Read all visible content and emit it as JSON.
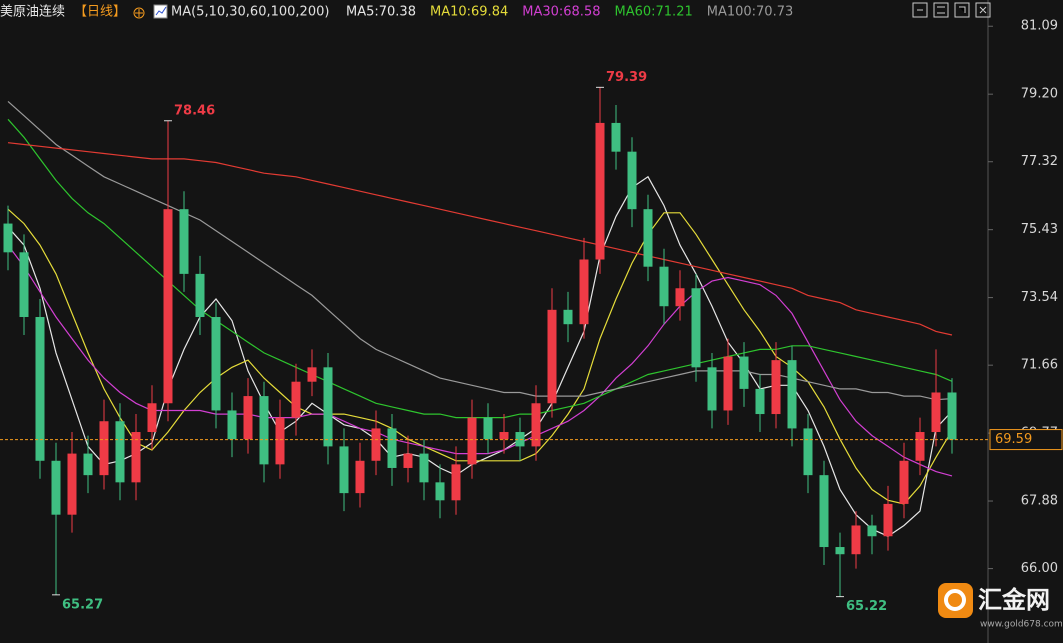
{
  "chart_data": {
    "type": "candlestick",
    "instrument": "美原油连续",
    "period": "【日线】",
    "ma_header": "MA(5,10,30,60,100,200)",
    "legend": [
      {
        "label": "MA5:70.38",
        "color": "#e6e6e6"
      },
      {
        "label": "MA10:69.84",
        "color": "#e5dc3a"
      },
      {
        "label": "MA30:68.58",
        "color": "#d23fd2"
      },
      {
        "label": "MA60:71.21",
        "color": "#2ec42e"
      },
      {
        "label": "MA100:70.73",
        "color": "#9a9a9a"
      }
    ],
    "up_color": "#ee3b46",
    "down_color": "#3fbf82",
    "last_color": "#f39a1e",
    "ylim": [
      63.93,
      81.82
    ],
    "yticks": [
      81.09,
      {
        "value": 79.2,
        "label": "79.20"
      },
      77.32,
      75.43,
      73.54,
      71.66,
      69.77,
      67.88,
      {
        "value": 66,
        "label": "66.00"
      }
    ],
    "opens": [
      75.6,
      74.8,
      73.0,
      69.0,
      67.5,
      69.2,
      68.6,
      70.1,
      68.4,
      69.8,
      70.6,
      76.0,
      74.2,
      73.0,
      70.4,
      69.6,
      70.8,
      68.9,
      70.2,
      71.2,
      71.6,
      69.4,
      68.1,
      69.0,
      69.9,
      68.8,
      69.2,
      68.4,
      67.9,
      68.9,
      70.2,
      69.6,
      69.8,
      69.4,
      70.6,
      73.2,
      72.8,
      74.6,
      78.4,
      77.6,
      76.0,
      74.4,
      73.3,
      73.8,
      71.6,
      70.4,
      71.9,
      71.0,
      70.3,
      71.8,
      69.9,
      68.6,
      66.6,
      66.4,
      67.2,
      66.9,
      67.8,
      69.0,
      69.8,
      70.9
    ],
    "highs": [
      76.1,
      75.3,
      73.5,
      69.5,
      69.8,
      69.7,
      70.7,
      70.6,
      70.3,
      71.1,
      78.46,
      76.5,
      74.7,
      73.4,
      70.9,
      71.3,
      71.2,
      70.7,
      71.7,
      72.1,
      72.0,
      69.9,
      69.5,
      70.4,
      70.3,
      69.7,
      69.6,
      68.9,
      69.4,
      70.7,
      70.6,
      70.3,
      70.2,
      71.1,
      73.8,
      73.7,
      75.2,
      79.39,
      78.9,
      78.0,
      76.4,
      74.9,
      74.3,
      74.2,
      72.0,
      72.4,
      72.3,
      71.4,
      72.3,
      72.2,
      70.3,
      69.0,
      67.0,
      67.6,
      67.5,
      68.3,
      69.5,
      70.2,
      72.1,
      71.3
    ],
    "lows": [
      74.3,
      72.5,
      68.5,
      65.27,
      67.0,
      68.1,
      68.2,
      67.9,
      67.9,
      69.3,
      70.1,
      73.7,
      72.5,
      69.9,
      69.1,
      69.2,
      68.4,
      68.5,
      69.7,
      70.8,
      68.9,
      67.6,
      67.7,
      68.6,
      68.3,
      68.4,
      67.9,
      67.4,
      67.5,
      68.5,
      69.2,
      69.2,
      69.0,
      69.0,
      70.2,
      72.3,
      72.4,
      74.2,
      77.1,
      75.5,
      74.0,
      72.8,
      72.9,
      71.2,
      69.9,
      70.0,
      70.5,
      69.8,
      69.9,
      69.4,
      68.1,
      66.1,
      65.22,
      66.0,
      66.4,
      66.5,
      67.4,
      68.6,
      69.4,
      69.2
    ],
    "closes": [
      74.8,
      73.0,
      69.0,
      67.5,
      69.2,
      68.6,
      70.1,
      68.4,
      69.8,
      70.6,
      76.0,
      74.2,
      73.0,
      70.4,
      69.6,
      70.8,
      68.9,
      70.2,
      71.2,
      71.6,
      69.4,
      68.1,
      69.0,
      69.9,
      68.8,
      69.2,
      68.4,
      67.9,
      68.9,
      70.2,
      69.6,
      69.8,
      69.4,
      70.6,
      73.2,
      72.8,
      74.6,
      78.4,
      77.6,
      76.0,
      74.4,
      73.3,
      73.8,
      71.6,
      70.4,
      71.9,
      71.0,
      70.3,
      71.8,
      69.9,
      68.6,
      66.6,
      66.4,
      67.2,
      66.9,
      67.8,
      69.0,
      69.8,
      70.9,
      69.59
    ],
    "series": [
      {
        "color": "#e6e6e6",
        "values": [
          75.5,
          75.0,
          73.8,
          72.0,
          70.7,
          69.4,
          68.9,
          69.0,
          69.2,
          69.5,
          71.0,
          72.1,
          73.0,
          73.5,
          72.9,
          71.5,
          70.6,
          69.8,
          70.1,
          70.6,
          70.3,
          70.0,
          69.9,
          69.6,
          69.1,
          69.2,
          69.1,
          68.8,
          68.6,
          68.9,
          69.1,
          69.3,
          69.6,
          69.9,
          70.6,
          71.6,
          72.6,
          74.7,
          75.8,
          76.6,
          76.9,
          76.1,
          75.0,
          74.2,
          73.3,
          72.3,
          71.7,
          71.0,
          71.1,
          71.1,
          70.4,
          69.4,
          68.2,
          67.5,
          67.1,
          66.9,
          67.2,
          67.6,
          69.9,
          70.38
        ]
      },
      {
        "color": "#e5dc3a",
        "values": [
          76.0,
          75.6,
          75.0,
          74.2,
          73.1,
          72.0,
          71.0,
          70.2,
          69.5,
          69.3,
          69.8,
          70.4,
          70.9,
          71.3,
          71.6,
          71.8,
          71.3,
          70.9,
          70.5,
          70.3,
          70.3,
          70.3,
          70.2,
          70.1,
          69.9,
          69.6,
          69.4,
          69.2,
          69.0,
          69.0,
          69.0,
          69.0,
          69.0,
          69.2,
          69.7,
          70.3,
          71.0,
          72.4,
          73.5,
          74.5,
          75.3,
          75.9,
          75.9,
          75.3,
          74.6,
          73.9,
          73.2,
          72.6,
          71.9,
          71.6,
          71.2,
          70.5,
          69.6,
          68.8,
          68.2,
          67.9,
          67.8,
          68.3,
          69.1,
          69.84
        ]
      },
      {
        "color": "#d23fd2",
        "values": [
          75.0,
          74.4,
          73.7,
          73.0,
          72.4,
          71.8,
          71.3,
          70.9,
          70.6,
          70.4,
          70.4,
          70.4,
          70.4,
          70.3,
          70.3,
          70.3,
          70.2,
          70.2,
          70.2,
          70.3,
          70.3,
          70.1,
          69.9,
          69.8,
          69.6,
          69.5,
          69.4,
          69.3,
          69.2,
          69.2,
          69.2,
          69.3,
          69.5,
          69.7,
          69.9,
          70.1,
          70.4,
          70.8,
          71.3,
          71.7,
          72.2,
          72.8,
          73.3,
          73.7,
          74.0,
          74.1,
          74.0,
          73.9,
          73.6,
          73.1,
          72.3,
          71.5,
          70.7,
          70.1,
          69.7,
          69.4,
          69.1,
          68.9,
          68.7,
          68.58
        ]
      },
      {
        "color": "#2ec42e",
        "values": [
          78.5,
          78.0,
          77.4,
          76.8,
          76.3,
          75.9,
          75.6,
          75.2,
          74.8,
          74.4,
          74.0,
          73.6,
          73.2,
          72.9,
          72.6,
          72.3,
          72.0,
          71.8,
          71.6,
          71.4,
          71.2,
          71.0,
          70.8,
          70.6,
          70.5,
          70.4,
          70.3,
          70.3,
          70.2,
          70.2,
          70.2,
          70.2,
          70.3,
          70.3,
          70.4,
          70.5,
          70.6,
          70.8,
          71.0,
          71.2,
          71.4,
          71.5,
          71.6,
          71.7,
          71.8,
          71.9,
          72.0,
          72.1,
          72.1,
          72.2,
          72.2,
          72.1,
          72.0,
          71.9,
          71.8,
          71.7,
          71.6,
          71.5,
          71.4,
          71.21
        ]
      },
      {
        "color": "#9a9a9a",
        "values": [
          79.0,
          78.6,
          78.2,
          77.8,
          77.5,
          77.2,
          76.9,
          76.7,
          76.5,
          76.3,
          76.1,
          75.9,
          75.7,
          75.4,
          75.1,
          74.8,
          74.5,
          74.2,
          73.9,
          73.6,
          73.2,
          72.8,
          72.4,
          72.1,
          71.9,
          71.7,
          71.5,
          71.3,
          71.2,
          71.1,
          71.0,
          70.9,
          70.9,
          70.8,
          70.8,
          70.8,
          70.8,
          70.9,
          71.0,
          71.1,
          71.2,
          71.3,
          71.4,
          71.5,
          71.5,
          71.5,
          71.5,
          71.4,
          71.4,
          71.3,
          71.2,
          71.1,
          71.0,
          71.0,
          70.9,
          70.9,
          70.8,
          70.8,
          70.7,
          70.73
        ]
      },
      {
        "color": "#e33b33",
        "values": [
          77.85,
          77.8,
          77.75,
          77.7,
          77.65,
          77.6,
          77.55,
          77.5,
          77.45,
          77.4,
          77.4,
          77.4,
          77.35,
          77.3,
          77.2,
          77.1,
          77.0,
          76.95,
          76.9,
          76.8,
          76.7,
          76.6,
          76.5,
          76.4,
          76.3,
          76.2,
          76.1,
          76.0,
          75.9,
          75.8,
          75.7,
          75.6,
          75.5,
          75.4,
          75.3,
          75.2,
          75.1,
          75.0,
          74.9,
          74.8,
          74.7,
          74.6,
          74.5,
          74.4,
          74.3,
          74.2,
          74.1,
          74.0,
          73.9,
          73.8,
          73.6,
          73.5,
          73.4,
          73.2,
          73.1,
          73.0,
          72.9,
          72.8,
          72.6,
          72.5
        ]
      }
    ]
  },
  "watermark": {
    "brand": "汇金网",
    "url": "www.gold678.com"
  }
}
